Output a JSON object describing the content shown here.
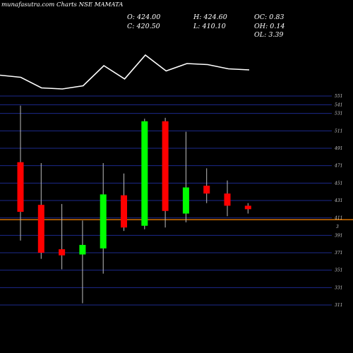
{
  "header": {
    "source": "munafasutra.com",
    "title": "Charts NSE MAMATA"
  },
  "ohlc_stats": {
    "open": "O: 424.00",
    "high": "H: 424.60",
    "oc": "OC: 0.83",
    "close": "C: 420.50",
    "low": "L: 410.10",
    "oh": "OH: 0.14",
    "ol": "OL: 3.39"
  },
  "colors": {
    "up": "#00ff00",
    "down": "#ff0000",
    "grid": "#1c2a8c",
    "last_price": "#ff8800",
    "line": "#ffffff"
  },
  "chart_data": {
    "type": "candlestick",
    "title": "Charts NSE MAMATA",
    "y_ticks": [
      551,
      541,
      531,
      511,
      491,
      471,
      451,
      431,
      411,
      391,
      371,
      351,
      331,
      311
    ],
    "y_tick_marker": {
      "value": 401,
      "label": "3"
    },
    "ylim": [
      311,
      551
    ],
    "last_price": 409,
    "grid": true,
    "candles": [
      {
        "open": 475,
        "high": 540,
        "low": 385,
        "close": 418,
        "direction": "down"
      },
      {
        "open": 426,
        "high": 474,
        "low": 364,
        "close": 371,
        "direction": "down"
      },
      {
        "open": 375,
        "high": 427,
        "low": 352,
        "close": 368,
        "direction": "down"
      },
      {
        "open": 369,
        "high": 408,
        "low": 313,
        "close": 380,
        "direction": "up"
      },
      {
        "open": 376,
        "high": 474,
        "low": 347,
        "close": 438,
        "direction": "up"
      },
      {
        "open": 437,
        "high": 462,
        "low": 396,
        "close": 400,
        "direction": "down"
      },
      {
        "open": 402,
        "high": 525,
        "low": 398,
        "close": 522,
        "direction": "up"
      },
      {
        "open": 522,
        "high": 526,
        "low": 400,
        "close": 419,
        "direction": "down"
      },
      {
        "open": 416,
        "high": 510,
        "low": 406,
        "close": 446,
        "direction": "up"
      },
      {
        "open": 448,
        "high": 468,
        "low": 428,
        "close": 439,
        "direction": "down"
      },
      {
        "open": 439,
        "high": 454,
        "low": 413,
        "close": 425,
        "direction": "down"
      },
      {
        "open": 425,
        "high": 428,
        "low": 416,
        "close": 421,
        "direction": "down"
      }
    ],
    "overlay_line": [
      0.62,
      0.58,
      0.38,
      0.36,
      0.42,
      0.8,
      0.55,
      1.0,
      0.7,
      0.84,
      0.82,
      0.74,
      0.72
    ]
  }
}
